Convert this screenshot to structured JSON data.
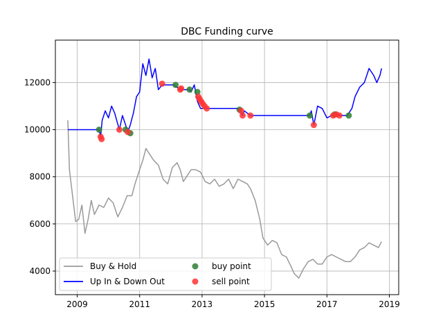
{
  "chart_data": {
    "type": "line",
    "title": "DBC Funding curve",
    "xlabel": "",
    "ylabel": "",
    "xlim": [
      2008.3,
      2019.3
    ],
    "ylim": [
      3000,
      13800
    ],
    "x_ticks": [
      2009,
      2011,
      2013,
      2015,
      2017,
      2019
    ],
    "y_ticks": [
      4000,
      6000,
      8000,
      10000,
      12000
    ],
    "grid": true,
    "legend_position": "lower-left",
    "colors": {
      "buy_hold": "#999999",
      "strategy": "#0000ff",
      "buy_point": "#2e7d32",
      "sell_point": "#ff3333"
    },
    "legend": [
      {
        "label": "Buy & Hold",
        "kind": "line",
        "color": "#999999"
      },
      {
        "label": "Up In & Down Out",
        "kind": "line",
        "color": "#0000ff"
      },
      {
        "label": "buy point",
        "kind": "marker",
        "color": "#2e7d32"
      },
      {
        "label": "sell point",
        "kind": "marker",
        "color": "#ff3333"
      }
    ],
    "series": [
      {
        "name": "Buy & Hold",
        "x": [
          2008.7,
          2008.75,
          2008.85,
          2008.95,
          2009.05,
          2009.15,
          2009.25,
          2009.35,
          2009.45,
          2009.55,
          2009.7,
          2009.85,
          2010.0,
          2010.15,
          2010.3,
          2010.45,
          2010.6,
          2010.75,
          2010.85,
          2011.0,
          2011.1,
          2011.2,
          2011.3,
          2011.45,
          2011.6,
          2011.75,
          2011.9,
          2012.05,
          2012.2,
          2012.3,
          2012.4,
          2012.5,
          2012.65,
          2012.8,
          2012.95,
          2013.1,
          2013.25,
          2013.4,
          2013.55,
          2013.7,
          2013.85,
          2014.0,
          2014.15,
          2014.3,
          2014.45,
          2014.55,
          2014.7,
          2014.85,
          2014.95,
          2015.1,
          2015.25,
          2015.4,
          2015.55,
          2015.7,
          2015.85,
          2015.95,
          2016.1,
          2016.25,
          2016.4,
          2016.55,
          2016.7,
          2016.85,
          2017.0,
          2017.15,
          2017.3,
          2017.45,
          2017.6,
          2017.75,
          2017.9,
          2018.05,
          2018.2,
          2018.35,
          2018.5,
          2018.65,
          2018.75
        ],
        "y": [
          10400,
          8300,
          7200,
          6100,
          6200,
          6800,
          5600,
          6200,
          7000,
          6400,
          6800,
          6700,
          7100,
          6900,
          6300,
          6700,
          7200,
          7200,
          7700,
          8300,
          8700,
          9200,
          9000,
          8700,
          8500,
          7900,
          7700,
          8400,
          8600,
          8300,
          7800,
          8000,
          8300,
          8300,
          8200,
          7800,
          7700,
          7900,
          7600,
          7700,
          7900,
          7500,
          7900,
          7800,
          7700,
          7500,
          7000,
          6200,
          5400,
          5100,
          5300,
          5200,
          4700,
          4600,
          4200,
          3900,
          3700,
          4100,
          4400,
          4500,
          4300,
          4300,
          4600,
          4700,
          4600,
          4500,
          4400,
          4400,
          4600,
          4900,
          5000,
          5200,
          5100,
          5000,
          5250
        ]
      },
      {
        "name": "Up In & Down Out",
        "x": [
          2008.7,
          2009.7,
          2009.75,
          2009.8,
          2009.9,
          2010.0,
          2010.1,
          2010.2,
          2010.35,
          2010.45,
          2010.55,
          2010.62,
          2010.7,
          2010.8,
          2010.9,
          2011.0,
          2011.1,
          2011.2,
          2011.3,
          2011.4,
          2011.5,
          2011.6,
          2011.72,
          2012.1,
          2012.2,
          2012.3,
          2012.6,
          2012.65,
          2012.75,
          2012.85,
          2012.95,
          2013.1,
          2014.15,
          2014.25,
          2014.3,
          2014.35,
          2014.55,
          2016.45,
          2016.5,
          2016.58,
          2016.7,
          2016.85,
          2017.0,
          2017.15,
          2017.25,
          2017.35,
          2017.4,
          2017.65,
          2017.8,
          2017.9,
          2018.05,
          2018.2,
          2018.35,
          2018.5,
          2018.6,
          2018.7,
          2018.75
        ],
        "y": [
          10000,
          10000,
          9700,
          10400,
          10800,
          10500,
          11000,
          10700,
          10000,
          10600,
          10200,
          9900,
          10200,
          10700,
          11400,
          11600,
          12800,
          12300,
          13000,
          12200,
          12600,
          11700,
          11900,
          11900,
          11800,
          11700,
          11700,
          11600,
          11900,
          11200,
          10900,
          10900,
          10900,
          10700,
          10600,
          10800,
          10600,
          10600,
          10800,
          10200,
          11000,
          10900,
          10500,
          10600,
          10700,
          10600,
          10600,
          10600,
          10900,
          11400,
          11800,
          12000,
          12600,
          12300,
          12000,
          12300,
          12600
        ]
      }
    ],
    "buy_points": {
      "name": "buy point",
      "x": [
        2009.7,
        2010.55,
        2010.7,
        2012.15,
        2012.6,
        2012.85,
        2014.2,
        2016.45,
        2017.25,
        2017.7
      ],
      "y": [
        10000,
        10000,
        9850,
        11900,
        11700,
        11600,
        10850,
        10600,
        10650,
        10600
      ]
    },
    "sell_points": {
      "name": "sell point",
      "x": [
        2009.75,
        2009.78,
        2010.35,
        2010.62,
        2011.72,
        2012.3,
        2012.33,
        2012.88,
        2012.92,
        2012.97,
        2013.02,
        2013.08,
        2013.15,
        2014.25,
        2014.3,
        2014.55,
        2016.58,
        2017.2,
        2017.3,
        2017.4
      ],
      "y": [
        9700,
        9600,
        10000,
        9900,
        11950,
        11700,
        11750,
        11400,
        11300,
        11200,
        11100,
        11000,
        10900,
        10800,
        10600,
        10600,
        10200,
        10600,
        10650,
        10600
      ]
    }
  }
}
